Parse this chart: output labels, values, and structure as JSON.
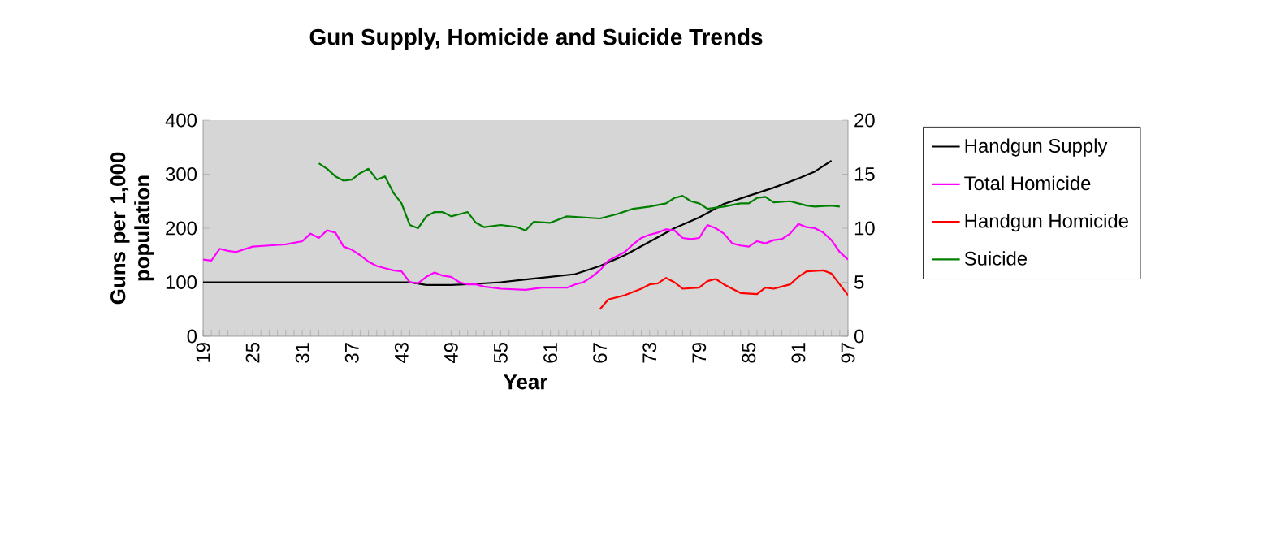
{
  "chart_data": {
    "type": "line",
    "title": "Gun Supply, Homicide and Suicide Trends",
    "xlabel": "Year",
    "ylabel": "Guns per 1,000 population",
    "xlim": [
      19,
      97
    ],
    "xticks": [
      19,
      25,
      31,
      37,
      43,
      49,
      55,
      61,
      67,
      73,
      79,
      85,
      91,
      97
    ],
    "ylim": [
      0,
      400
    ],
    "yticks": [
      0,
      100,
      200,
      300,
      400
    ],
    "y2lim": [
      0,
      20
    ],
    "y2ticks": [
      0,
      5,
      10,
      15,
      20
    ],
    "grid": false,
    "legend": "right",
    "marker": "none",
    "line_style": "solid",
    "series": [
      {
        "name": "Handgun Supply",
        "color": "#000000",
        "axis": "y",
        "x": [
          19,
          44,
          46,
          49,
          52,
          55,
          58,
          61,
          64,
          67,
          70,
          73,
          76,
          79,
          82,
          85,
          88,
          91,
          93,
          95
        ],
        "values": [
          100,
          100,
          95,
          95,
          97,
          100,
          105,
          110,
          115,
          130,
          150,
          175,
          200,
          220,
          245,
          260,
          275,
          292,
          305,
          325
        ]
      },
      {
        "name": "Total Homicide",
        "color": "#ff00ff",
        "axis": "y2",
        "x": [
          19,
          20,
          21,
          22,
          23,
          25,
          27,
          29,
          31,
          32,
          33,
          34,
          35,
          36,
          37,
          38,
          39,
          40,
          41,
          42,
          43,
          44,
          45,
          46,
          47,
          48,
          49,
          50,
          51,
          52,
          53,
          55,
          58,
          60,
          63,
          64,
          65,
          66,
          67,
          68,
          70,
          71,
          72,
          73,
          74,
          75,
          76,
          77,
          78,
          79,
          80,
          81,
          82,
          83,
          84,
          85,
          86,
          87,
          88,
          89,
          90,
          91,
          92,
          93,
          94,
          95,
          96,
          97
        ],
        "values": [
          7.1,
          7.0,
          8.1,
          7.9,
          7.8,
          8.3,
          8.4,
          8.5,
          8.8,
          9.5,
          9.1,
          9.8,
          9.6,
          8.3,
          8.0,
          7.5,
          6.9,
          6.5,
          6.3,
          6.1,
          6.0,
          5.0,
          4.9,
          5.5,
          5.9,
          5.6,
          5.5,
          5.0,
          4.8,
          4.8,
          4.6,
          4.4,
          4.3,
          4.5,
          4.5,
          4.8,
          5.0,
          5.5,
          6.1,
          7.0,
          7.8,
          8.5,
          9.1,
          9.4,
          9.6,
          9.9,
          9.8,
          9.1,
          9.0,
          9.1,
          10.3,
          10.0,
          9.5,
          8.6,
          8.4,
          8.3,
          8.8,
          8.6,
          8.9,
          9.0,
          9.5,
          10.4,
          10.1,
          10.0,
          9.6,
          8.9,
          7.8,
          7.1
        ]
      },
      {
        "name": "Handgun Homicide",
        "color": "#ff0000",
        "axis": "y2",
        "x": [
          67,
          68,
          70,
          72,
          73,
          74,
          75,
          76,
          77,
          79,
          80,
          81,
          82,
          84,
          86,
          87,
          88,
          89,
          90,
          91,
          92,
          94,
          95,
          96,
          97
        ],
        "values": [
          2.5,
          3.4,
          3.8,
          4.4,
          4.8,
          4.9,
          5.4,
          5.0,
          4.4,
          4.5,
          5.1,
          5.3,
          4.8,
          4.0,
          3.9,
          4.5,
          4.4,
          4.6,
          4.8,
          5.5,
          6.0,
          6.1,
          5.8,
          4.8,
          3.8
        ]
      },
      {
        "name": "Suicide",
        "color": "#008000",
        "axis": "y2",
        "x": [
          33,
          34,
          35,
          36,
          37,
          38,
          39,
          40,
          41,
          42,
          43,
          44,
          45,
          46,
          47,
          48,
          49,
          50,
          51,
          52,
          53,
          55,
          57,
          58,
          59,
          61,
          63,
          65,
          67,
          69,
          71,
          73,
          75,
          76,
          77,
          78,
          79,
          80,
          82,
          84,
          85,
          86,
          87,
          88,
          90,
          92,
          93,
          95,
          96
        ],
        "values": [
          16.0,
          15.5,
          14.8,
          14.4,
          14.5,
          15.1,
          15.5,
          14.5,
          14.8,
          13.3,
          12.3,
          10.3,
          10.0,
          11.1,
          11.5,
          11.5,
          11.1,
          11.3,
          11.5,
          10.5,
          10.1,
          10.3,
          10.1,
          9.8,
          10.6,
          10.5,
          11.1,
          11.0,
          10.9,
          11.3,
          11.8,
          12.0,
          12.3,
          12.8,
          13.0,
          12.5,
          12.3,
          11.8,
          12.0,
          12.3,
          12.3,
          12.8,
          12.9,
          12.4,
          12.5,
          12.1,
          12.0,
          12.1,
          12.0
        ]
      }
    ]
  }
}
